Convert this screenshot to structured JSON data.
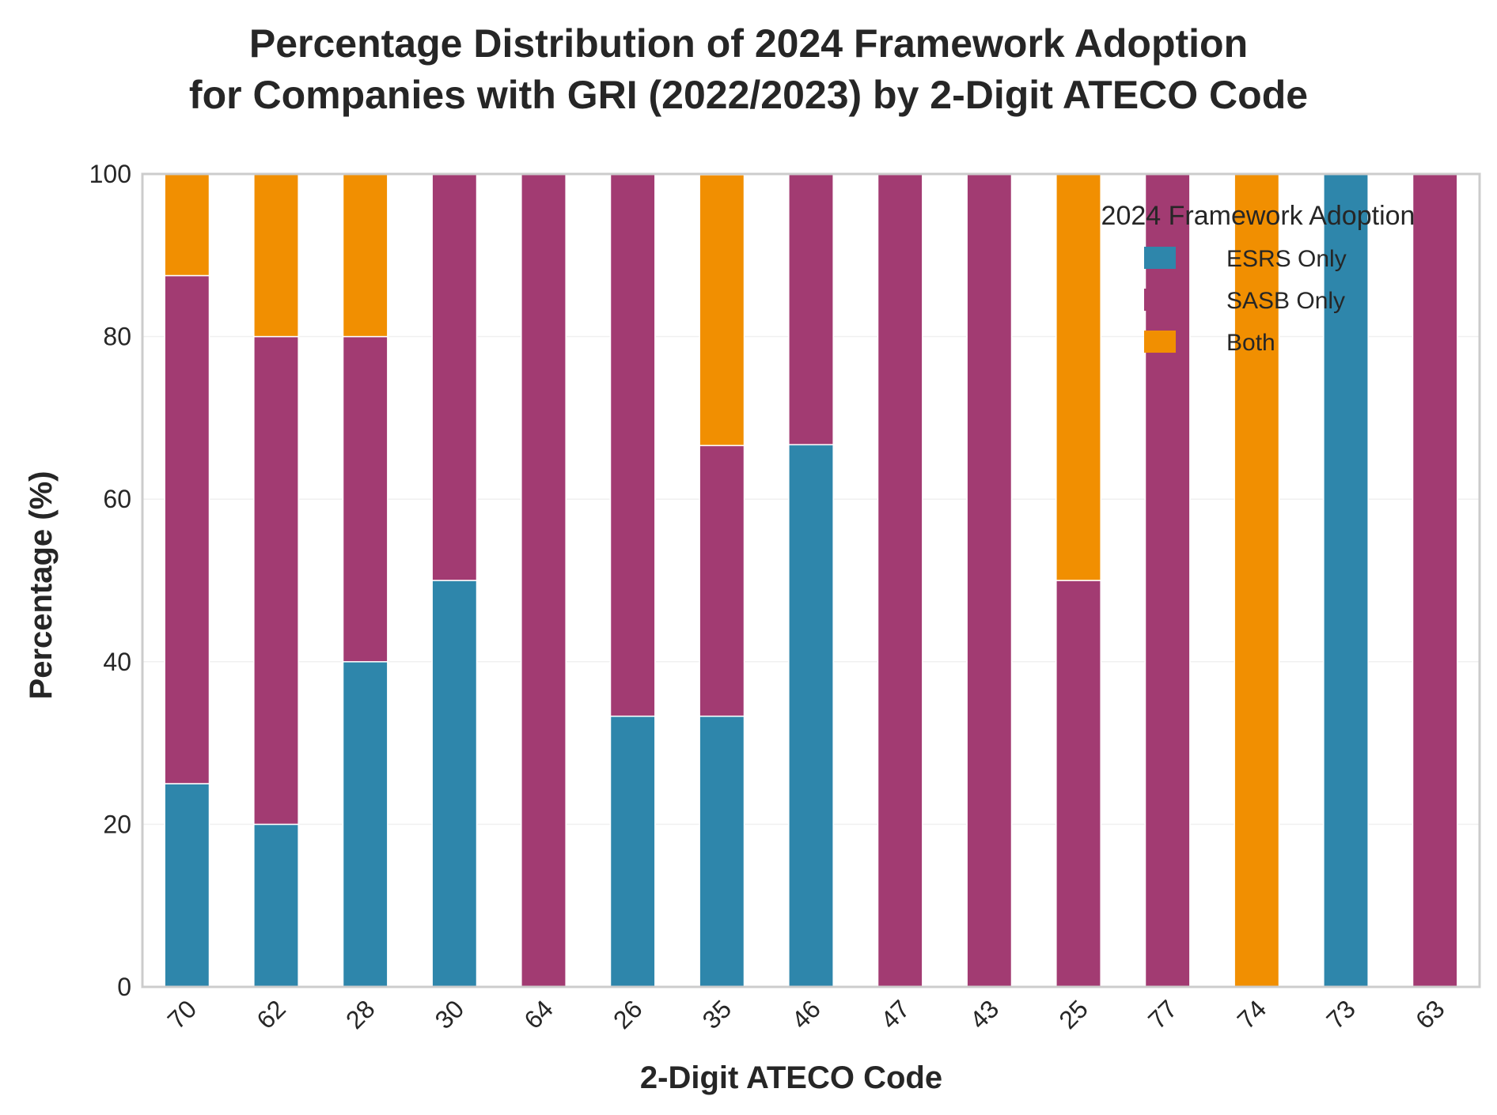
{
  "chart_data": {
    "type": "bar",
    "stacked": true,
    "title_line1": "Percentage Distribution of 2024 Framework Adoption",
    "title_line2": "for Companies with GRI (2022/2023) by 2-Digit ATECO Code",
    "xlabel": "2-Digit ATECO Code",
    "ylabel": "Percentage (%)",
    "ylim": [
      0,
      100
    ],
    "yticks": [
      0,
      20,
      40,
      60,
      80,
      100
    ],
    "grid": true,
    "legend_title": "2024 Framework Adoption",
    "legend_position": "top-right",
    "categories": [
      "70",
      "62",
      "28",
      "30",
      "64",
      "26",
      "35",
      "46",
      "47",
      "43",
      "25",
      "77",
      "74",
      "73",
      "63"
    ],
    "series": [
      {
        "name": "ESRS Only",
        "color": "#2e86ab",
        "values": [
          25,
          20,
          40,
          50,
          0,
          33.3,
          33.3,
          66.7,
          0,
          0,
          0,
          0,
          0,
          100,
          0
        ]
      },
      {
        "name": "SASB Only",
        "color": "#a23b72",
        "values": [
          62.5,
          60,
          40,
          50,
          100,
          66.7,
          33.3,
          33.3,
          100,
          100,
          50,
          100,
          0,
          0,
          100
        ]
      },
      {
        "name": "Both",
        "color": "#f18f01",
        "values": [
          12.5,
          20,
          20,
          0,
          0,
          0,
          33.3,
          0,
          0,
          0,
          50,
          0,
          100,
          0,
          0
        ]
      }
    ]
  }
}
